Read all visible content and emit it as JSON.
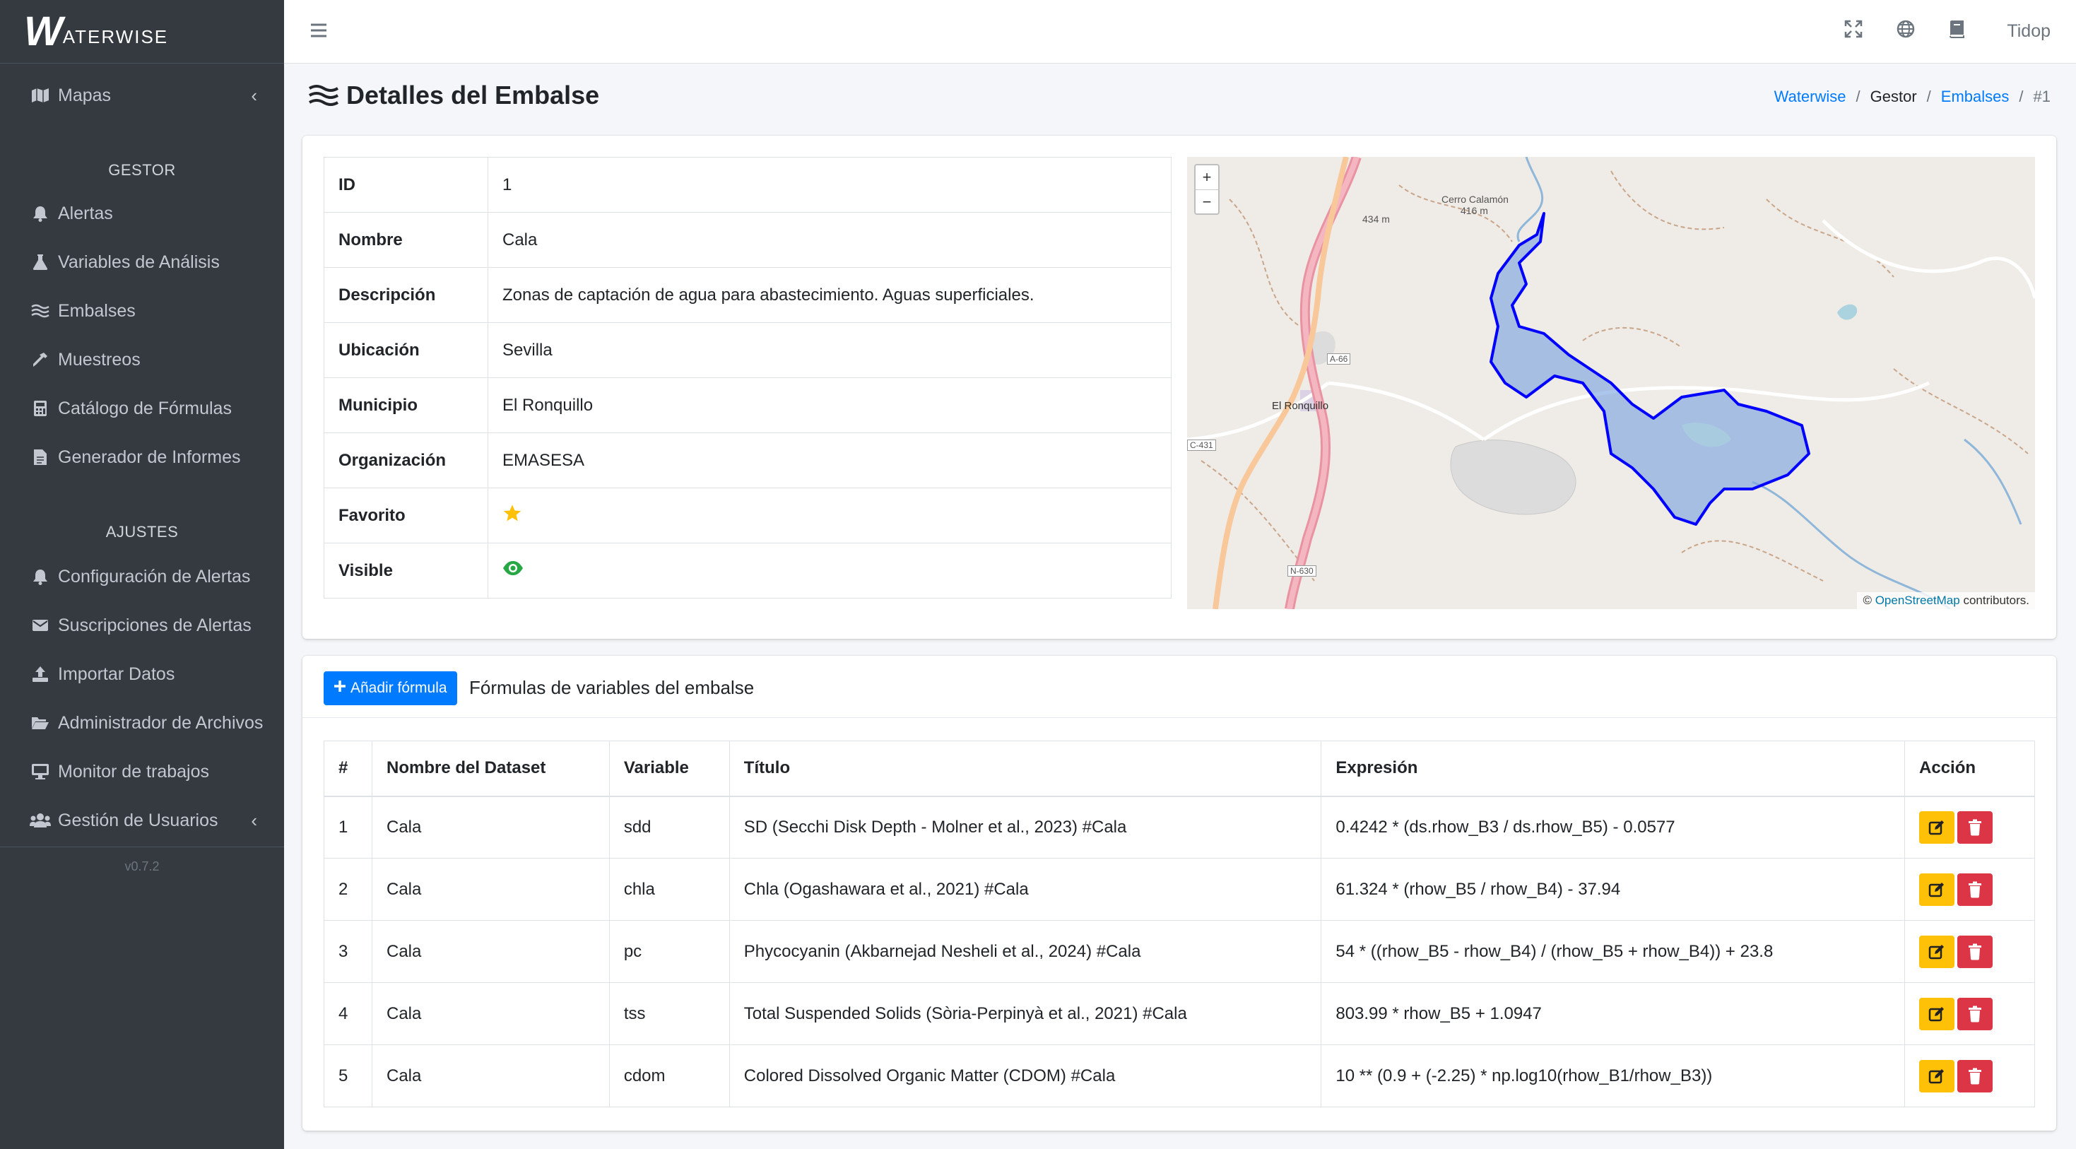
{
  "brand": {
    "logo_initial": "W",
    "logo_rest": "ATERWISE"
  },
  "sidebar": {
    "top": [
      {
        "label": "Mapas"
      }
    ],
    "gestor_header": "GESTOR",
    "gestor": [
      {
        "label": "Alertas"
      },
      {
        "label": "Variables de Análisis"
      },
      {
        "label": "Embalses"
      },
      {
        "label": "Muestreos"
      },
      {
        "label": "Catálogo de Fórmulas"
      },
      {
        "label": "Generador de Informes"
      }
    ],
    "ajustes_header": "AJUSTES",
    "ajustes": [
      {
        "label": "Configuración de Alertas"
      },
      {
        "label": "Suscripciones de Alertas"
      },
      {
        "label": "Importar Datos"
      },
      {
        "label": "Administrador de Archivos"
      },
      {
        "label": "Monitor de trabajos"
      },
      {
        "label": "Gestión de Usuarios"
      }
    ],
    "version": "v0.7.2"
  },
  "topbar": {
    "user": "Tidop"
  },
  "page": {
    "title": "Detalles del Embalse",
    "breadcrumb": {
      "home": "Waterwise",
      "section": "Gestor",
      "list": "Embalses",
      "current": "#1"
    }
  },
  "details": [
    {
      "key": "ID",
      "value": "1"
    },
    {
      "key": "Nombre",
      "value": "Cala"
    },
    {
      "key": "Descripción",
      "value": "Zonas de captación de agua para abastecimiento. Aguas superficiales."
    },
    {
      "key": "Ubicación",
      "value": "Sevilla"
    },
    {
      "key": "Municipio",
      "value": "El Ronquillo"
    },
    {
      "key": "Organización",
      "value": "EMASESA"
    },
    {
      "key": "Favorito",
      "value": ""
    },
    {
      "key": "Visible",
      "value": ""
    }
  ],
  "map": {
    "zoom_in": "+",
    "zoom_out": "−",
    "attribution_prefix": "©",
    "attribution_link": "OpenStreetMap",
    "attribution_suffix": "contributors.",
    "labels": {
      "town": "El Ronquillo",
      "peak": "Cerro Calamón",
      "peak_alt": "416 m",
      "alt2": "434 m",
      "road_a66": "A-66",
      "road_n630": "N-630",
      "road_c431": "C-431"
    },
    "water_color": "#7ea6e0",
    "outline_color": "#0000ff"
  },
  "formulas": {
    "add_button": "Añadir fórmula",
    "title": "Fórmulas de variables del embalse",
    "headers": [
      "#",
      "Nombre del Dataset",
      "Variable",
      "Título",
      "Expresión",
      "Acción"
    ],
    "rows": [
      {
        "n": "1",
        "dataset": "Cala",
        "variable": "sdd",
        "titulo": "SD (Secchi Disk Depth - Molner et al., 2023) #Cala",
        "expr": "0.4242 * (ds.rhow_B3 / ds.rhow_B5) - 0.0577"
      },
      {
        "n": "2",
        "dataset": "Cala",
        "variable": "chla",
        "titulo": "Chla (Ogashawara et al., 2021) #Cala",
        "expr": "61.324 * (rhow_B5 / rhow_B4) - 37.94"
      },
      {
        "n": "3",
        "dataset": "Cala",
        "variable": "pc",
        "titulo": "Phycocyanin (Akbarnejad Nesheli et al., 2024) #Cala",
        "expr": "54 * ((rhow_B5 - rhow_B4) / (rhow_B5 + rhow_B4)) + 23.8"
      },
      {
        "n": "4",
        "dataset": "Cala",
        "variable": "tss",
        "titulo": "Total Suspended Solids (Sòria-Perpinyà et al., 2021) #Cala",
        "expr": "803.99 * rhow_B5 + 1.0947"
      },
      {
        "n": "5",
        "dataset": "Cala",
        "variable": "cdom",
        "titulo": "Colored Dissolved Organic Matter (CDOM) #Cala",
        "expr": "10 ** (0.9 + (-2.25) * np.log10(rhow_B1/rhow_B3))"
      }
    ]
  },
  "colors": {
    "primary": "#007bff",
    "warning": "#ffc107",
    "danger": "#dc3545",
    "success": "#28a745",
    "sidebar": "#343a40"
  }
}
